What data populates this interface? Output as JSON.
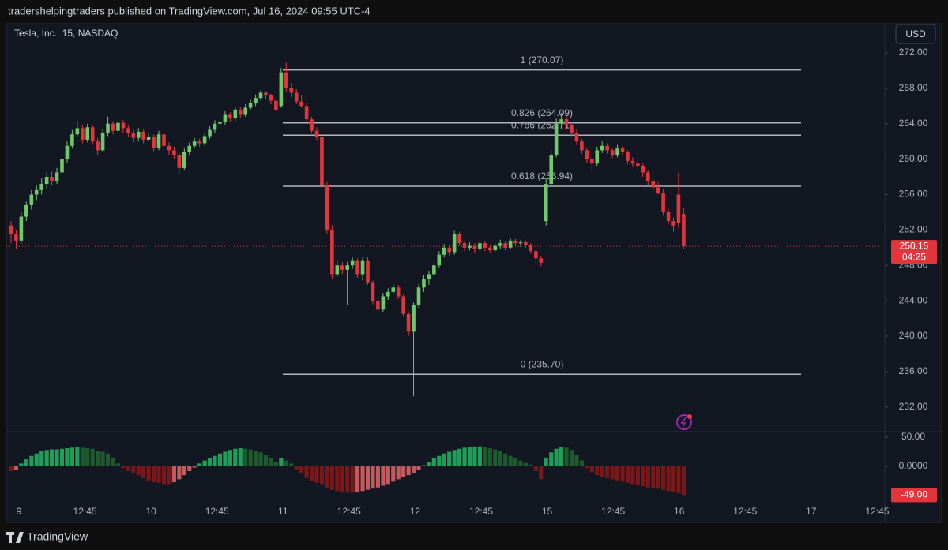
{
  "header": {
    "text": "tradershelpingtraders published on TradingView.com, Jul 16, 2024 09:55 UTC-4"
  },
  "footer": {
    "brand": "TradingView"
  },
  "chart_data": {
    "type": "candlestick",
    "title": "Tesla, Inc., 15, NASDAQ",
    "currency": "USD",
    "colors": {
      "up": "#6fc96b",
      "down": "#e3353b"
    },
    "grid": false,
    "ylim": [
      229.3,
      275.3
    ],
    "yticks": [
      {
        "value": 232,
        "label": "232.00"
      },
      {
        "value": 236,
        "label": "236.00"
      },
      {
        "value": 240,
        "label": "240.00"
      },
      {
        "value": 244,
        "label": "244.00"
      },
      {
        "value": 248,
        "label": "248.00"
      },
      {
        "value": 252,
        "label": "252.00"
      },
      {
        "value": 256,
        "label": "256.00"
      },
      {
        "value": 260,
        "label": "260.00"
      },
      {
        "value": 264,
        "label": "264.00"
      },
      {
        "value": 268,
        "label": "268.00"
      },
      {
        "value": 272,
        "label": "272.00"
      }
    ],
    "xticks": [
      "9",
      "12:45",
      "10",
      "12:45",
      "11",
      "12:45",
      "12",
      "12:45",
      "15",
      "12:45",
      "16",
      "12:45",
      "17",
      "12:45"
    ],
    "last_price": {
      "value": 250.15,
      "label": "250.15"
    },
    "countdown": "04:25",
    "fib_levels": [
      {
        "value": 270.07,
        "label": "1 (270.07)"
      },
      {
        "value": 264.09,
        "label": "0.826 (264.09)"
      },
      {
        "value": 262.71,
        "label": "0.786 (262.71)"
      },
      {
        "value": 256.94,
        "label": "0.618 (256.94)"
      },
      {
        "value": 235.7,
        "label": "0 (235.70)"
      }
    ],
    "ohlc": [
      [
        252.5,
        253,
        250.5,
        251.5
      ],
      [
        251.5,
        252,
        249.8,
        250.8
      ],
      [
        250.8,
        254,
        250.5,
        253.5
      ],
      [
        253.5,
        255.2,
        253,
        254.8
      ],
      [
        254.8,
        256.5,
        254.3,
        256
      ],
      [
        256,
        257,
        255.3,
        256.5
      ],
      [
        256.5,
        257.8,
        256,
        257.2
      ],
      [
        257.2,
        258.5,
        256.6,
        258
      ],
      [
        258,
        258.6,
        257,
        257.5
      ],
      [
        257.5,
        259,
        257.2,
        258.5
      ],
      [
        258.5,
        260.5,
        258.2,
        260
      ],
      [
        260,
        262,
        259.6,
        261.5
      ],
      [
        261.5,
        263.3,
        261.2,
        262.8
      ],
      [
        262.8,
        264.3,
        262.5,
        263.5
      ],
      [
        263.5,
        263.9,
        261.8,
        262.2
      ],
      [
        262.2,
        264,
        261.9,
        263.6
      ],
      [
        263.6,
        263.8,
        261.6,
        262
      ],
      [
        262,
        262.4,
        260.4,
        261
      ],
      [
        261,
        263.4,
        260.8,
        263
      ],
      [
        263,
        264.8,
        262.6,
        264
      ],
      [
        264,
        264.3,
        262.8,
        263.2
      ],
      [
        263.2,
        264.5,
        262.9,
        264.1
      ],
      [
        264.1,
        264.4,
        263,
        263.5
      ],
      [
        263.5,
        263.9,
        262.5,
        263
      ],
      [
        263,
        263.3,
        261.9,
        262.4
      ],
      [
        262.4,
        263.5,
        262,
        263.1
      ],
      [
        263.1,
        263.4,
        261.8,
        262.2
      ],
      [
        262.2,
        263,
        262,
        262.5
      ],
      [
        262.5,
        262.8,
        260.9,
        261.3
      ],
      [
        261.3,
        263.2,
        261,
        262.8
      ],
      [
        262.8,
        263,
        261.1,
        261.5
      ],
      [
        261.5,
        261.9,
        260.5,
        261
      ],
      [
        261,
        261.4,
        260,
        260.5
      ],
      [
        260.5,
        260.8,
        258.3,
        259
      ],
      [
        259,
        261.2,
        258.8,
        260.8
      ],
      [
        260.8,
        261.9,
        260.5,
        261.5
      ],
      [
        261.5,
        262.4,
        261.2,
        262
      ],
      [
        262,
        262.3,
        261.4,
        261.8
      ],
      [
        261.8,
        263,
        261.5,
        262.6
      ],
      [
        262.6,
        263.7,
        262.3,
        263.3
      ],
      [
        263.3,
        264.4,
        263,
        264
      ],
      [
        264,
        264.6,
        263.6,
        264.2
      ],
      [
        264.2,
        265.4,
        263.9,
        265
      ],
      [
        265,
        265.3,
        264.2,
        264.6
      ],
      [
        264.6,
        266,
        264.3,
        265.6
      ],
      [
        265.6,
        265.9,
        264.7,
        265
      ],
      [
        265,
        266.2,
        264.8,
        265.8
      ],
      [
        265.8,
        266.7,
        265.5,
        266.3
      ],
      [
        266.3,
        267.3,
        266,
        266.9
      ],
      [
        266.9,
        267.8,
        266.6,
        267.5
      ],
      [
        267.5,
        267.7,
        266.8,
        267.2
      ],
      [
        267.2,
        267.4,
        266.2,
        266.6
      ],
      [
        266.6,
        266.9,
        265.3,
        265.5
      ],
      [
        266,
        270.3,
        265.8,
        269.8
      ],
      [
        269.8,
        270.9,
        267.6,
        268
      ],
      [
        268,
        268.6,
        267,
        267.5
      ],
      [
        267.5,
        267.9,
        266.2,
        266.5
      ],
      [
        266.5,
        267.2,
        265.8,
        266
      ],
      [
        266,
        266.3,
        264.2,
        264.5
      ],
      [
        264.5,
        264.8,
        262.9,
        263.2
      ],
      [
        263.2,
        263.6,
        262.1,
        262.5
      ],
      [
        262.5,
        262.8,
        256.5,
        257
      ],
      [
        257,
        257.4,
        251.5,
        252
      ],
      [
        252,
        252.5,
        246.5,
        247
      ],
      [
        247,
        248.6,
        246.7,
        248
      ],
      [
        248,
        248.4,
        247,
        247.5
      ],
      [
        247.5,
        248.4,
        243.5,
        248
      ],
      [
        248,
        248.9,
        247.6,
        248.5
      ],
      [
        248.5,
        248.8,
        246.6,
        247
      ],
      [
        247,
        248.9,
        246.3,
        248.5
      ],
      [
        248.5,
        248.9,
        245.8,
        246
      ],
      [
        246,
        246.3,
        243.6,
        244
      ],
      [
        244,
        244.4,
        242.8,
        243
      ],
      [
        243,
        244.9,
        242.7,
        244.5
      ],
      [
        244.5,
        245.4,
        244.1,
        245
      ],
      [
        245,
        245.9,
        244.7,
        245.5
      ],
      [
        245.5,
        245.8,
        244.2,
        244.5
      ],
      [
        244.5,
        244.8,
        242.2,
        242.5
      ],
      [
        242.5,
        242.8,
        240,
        240.5
      ],
      [
        240.5,
        243.8,
        233.2,
        243.5
      ],
      [
        243.5,
        245.9,
        243.2,
        245.5
      ],
      [
        245.5,
        246.9,
        245,
        246.5
      ],
      [
        246.5,
        247.4,
        245.8,
        247
      ],
      [
        247,
        248.5,
        246.7,
        248
      ],
      [
        248,
        249.6,
        247.7,
        249.2
      ],
      [
        249.2,
        250.4,
        248.9,
        250
      ],
      [
        250,
        250.3,
        249.1,
        249.5
      ],
      [
        249.5,
        251.9,
        249.2,
        251.5
      ],
      [
        251.5,
        251.8,
        250.2,
        250.5
      ],
      [
        250.5,
        250.8,
        249.6,
        250
      ],
      [
        250,
        250.6,
        249.7,
        250.2
      ],
      [
        250.2,
        250.5,
        249.4,
        249.8
      ],
      [
        249.8,
        250.9,
        249.5,
        250.5
      ],
      [
        250.5,
        250.7,
        249.6,
        250
      ],
      [
        250,
        250.3,
        249.4,
        249.7
      ],
      [
        249.7,
        250.5,
        249.5,
        250.2
      ],
      [
        250.2,
        250.9,
        249.9,
        250.5
      ],
      [
        250.5,
        250.7,
        249.7,
        250
      ],
      [
        250,
        251.1,
        249.8,
        250.8
      ],
      [
        250.8,
        251,
        250.2,
        250.5
      ],
      [
        250.5,
        250.9,
        250.1,
        250.6
      ],
      [
        250.6,
        250.8,
        250,
        250.3
      ],
      [
        250.3,
        250.5,
        249.3,
        249.6
      ],
      [
        249.6,
        249.8,
        248.3,
        248.8
      ],
      [
        248.8,
        249.1,
        247.9,
        248.3
      ],
      [
        253,
        257.8,
        252.5,
        257.2
      ],
      [
        257.2,
        261,
        256.9,
        260.5
      ],
      [
        260.5,
        264.6,
        260.2,
        264
      ],
      [
        264,
        265.2,
        263.4,
        264.5
      ],
      [
        264.5,
        264.9,
        263.3,
        263.8
      ],
      [
        263.8,
        264.2,
        262.6,
        263
      ],
      [
        263,
        263.4,
        261.6,
        262
      ],
      [
        262,
        262.3,
        260.6,
        261
      ],
      [
        261,
        261.3,
        259.6,
        260
      ],
      [
        260,
        260.4,
        258.6,
        259.5
      ],
      [
        259.5,
        261.4,
        259.2,
        261
      ],
      [
        261,
        262,
        260.7,
        261.5
      ],
      [
        261.5,
        261.8,
        260.6,
        261
      ],
      [
        261,
        261.3,
        260.1,
        260.5
      ],
      [
        260.5,
        261.6,
        260.2,
        261.2
      ],
      [
        261.2,
        261.5,
        260.4,
        260.8
      ],
      [
        260.8,
        261,
        259.4,
        259.8
      ],
      [
        259.8,
        260.2,
        259.1,
        259.5
      ],
      [
        259.5,
        260,
        258.8,
        259.2
      ],
      [
        259.2,
        259.5,
        258,
        258.5
      ],
      [
        258.5,
        258.8,
        257,
        257.5
      ],
      [
        257.5,
        257.8,
        256.4,
        256.8
      ],
      [
        256.8,
        257.4,
        256,
        256.2
      ],
      [
        256.2,
        256.6,
        253.6,
        254
      ],
      [
        254,
        254.4,
        252.6,
        253
      ],
      [
        253,
        253.4,
        251.8,
        252.5
      ],
      [
        256,
        258.5,
        252.2,
        252.8
      ],
      [
        253.8,
        254.5,
        249.9,
        250.15
      ]
    ],
    "oscillator": {
      "type": "histogram",
      "ylim": [
        -66,
        58
      ],
      "yticks": [
        {
          "value": 50,
          "label": "50.00"
        },
        {
          "value": 0,
          "label": "0.0000"
        }
      ],
      "last_label": {
        "value": -49,
        "label": "-49.00"
      },
      "colors": {
        "pos_rising": "#1f9e5a",
        "pos_falling": "#1d5a2e",
        "neg_falling": "#7a1719",
        "neg_rising": "#c45a5e"
      },
      "values": [
        -8,
        -6,
        5,
        12,
        18,
        22,
        26,
        28,
        29,
        29,
        30,
        31,
        32,
        33,
        32,
        31,
        30,
        27,
        25,
        22,
        15,
        5,
        -3,
        -8,
        -12,
        -15,
        -20,
        -24,
        -27,
        -28,
        -30,
        -30,
        -27,
        -22,
        -15,
        -8,
        -2,
        5,
        10,
        14,
        18,
        22,
        25,
        28,
        30,
        31,
        30,
        29,
        27,
        24,
        20,
        15,
        8,
        14,
        10,
        5,
        -5,
        -12,
        -20,
        -25,
        -28,
        -30,
        -36,
        -40,
        -42,
        -44,
        -45,
        -45,
        -44,
        -42,
        -40,
        -38,
        -36,
        -33,
        -30,
        -26,
        -22,
        -18,
        -15,
        -12,
        -6,
        2,
        8,
        14,
        18,
        22,
        25,
        28,
        30,
        32,
        33,
        34,
        34,
        33,
        31,
        29,
        26,
        22,
        18,
        14,
        10,
        6,
        3,
        -8,
        -22,
        15,
        24,
        30,
        33,
        32,
        28,
        20,
        10,
        -3,
        -10,
        -15,
        -18,
        -20,
        -22,
        -24,
        -26,
        -28,
        -30,
        -32,
        -34,
        -36,
        -37,
        -38,
        -40,
        -42,
        -44,
        -46,
        -49
      ]
    }
  }
}
